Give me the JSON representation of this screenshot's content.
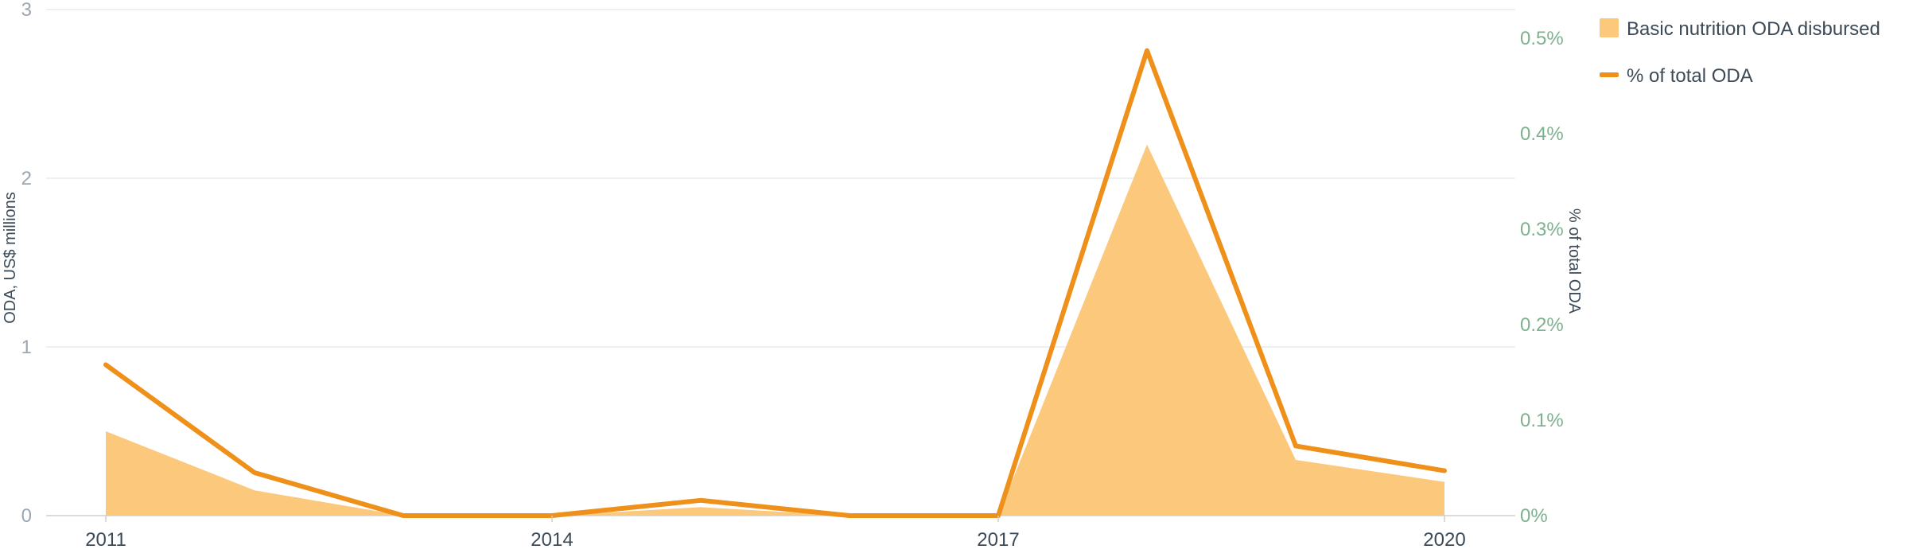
{
  "chart_data": {
    "type": "line",
    "x": [
      2011,
      2012,
      2013,
      2014,
      2015,
      2016,
      2017,
      2018,
      2019,
      2020
    ],
    "xticks": [
      "2011",
      "2014",
      "2017",
      "2020"
    ],
    "series": [
      {
        "name": "Basic nutrition ODA disbursed",
        "type": "area",
        "axis": "left",
        "color": "#fbc87c",
        "values": [
          0.5,
          0.15,
          0.0,
          0.0,
          0.05,
          0.0,
          0.0,
          2.2,
          0.33,
          0.2
        ]
      },
      {
        "name": "% of total ODA",
        "type": "line",
        "axis": "right",
        "color": "#ee9019",
        "values": [
          0.158,
          0.045,
          0.0,
          0.0,
          0.016,
          0.0,
          0.0,
          0.487,
          0.073,
          0.047
        ]
      }
    ],
    "y_left": {
      "label": "ODA, US$ millions",
      "range": [
        0,
        3
      ],
      "ticks": [
        "0",
        "1",
        "2",
        "3"
      ]
    },
    "y_right": {
      "label": "% of total ODA",
      "range": [
        0,
        0.53
      ],
      "ticks": [
        "0%",
        "0.1%",
        "0.2%",
        "0.3%",
        "0.4%",
        "0.5%"
      ]
    },
    "grid": true,
    "legend_position": "top-right"
  }
}
